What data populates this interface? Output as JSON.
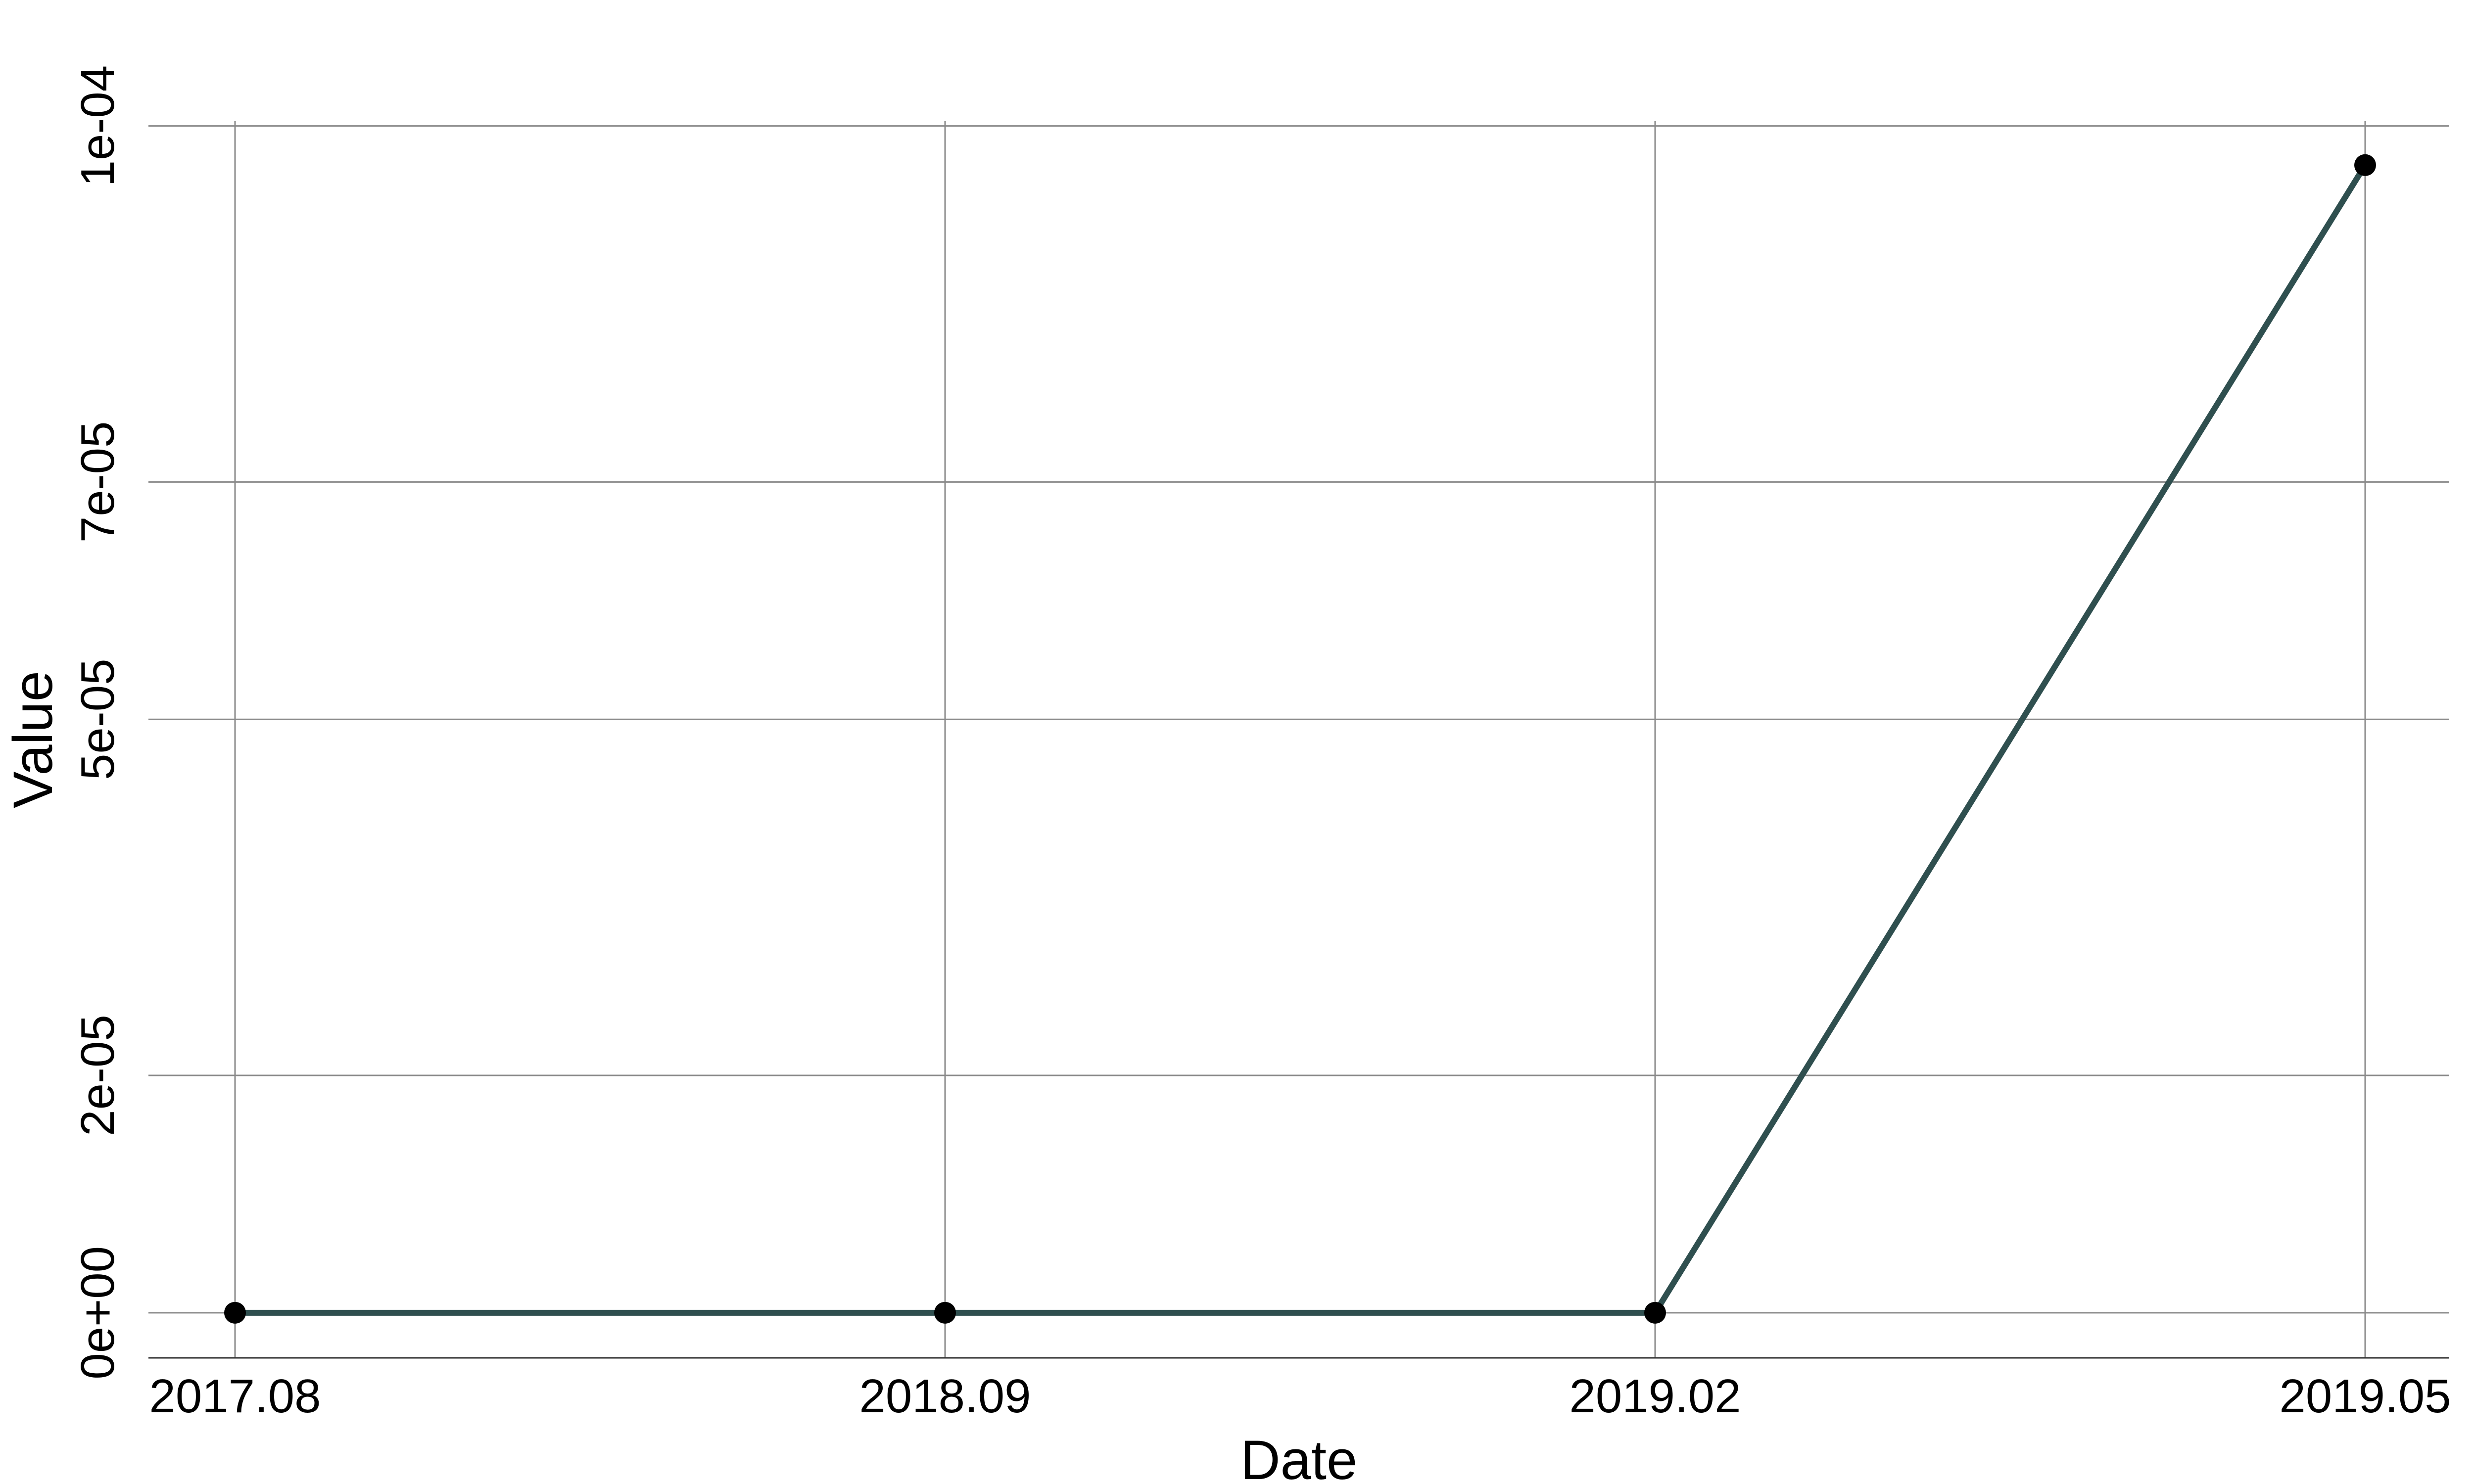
{
  "chart_data": {
    "type": "line",
    "title": "",
    "xlabel": "Date",
    "ylabel": "Value",
    "categories": [
      "2017.08",
      "2018.09",
      "2019.02",
      "2019.05"
    ],
    "series": [
      {
        "name": "Value",
        "values": [
          0,
          0,
          0,
          9.67e-05
        ],
        "color": "#2f4f4f"
      }
    ],
    "ylim": [
      -3.8e-06,
      0.0001004
    ],
    "yticks": [
      0,
      2e-05,
      5e-05,
      7e-05,
      0.0001
    ],
    "ytick_labels": [
      "0e+00",
      "2e-05",
      "5e-05",
      "7e-05",
      "1e-04"
    ],
    "grid": true,
    "marker_color": "#000000"
  }
}
